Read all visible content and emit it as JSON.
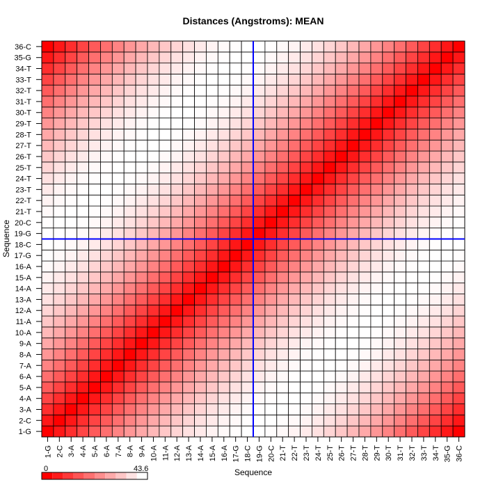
{
  "chart_data": {
    "type": "heatmap",
    "title": "Distances (Angstroms):  MEAN",
    "xlabel": "Sequence",
    "ylabel": "Sequence",
    "labels": [
      "1-G",
      "2-C",
      "3-A",
      "4-A",
      "5-A",
      "6-A",
      "7-A",
      "8-A",
      "9-A",
      "10-A",
      "11-A",
      "12-A",
      "13-A",
      "14-A",
      "15-A",
      "16-A",
      "17-G",
      "18-C",
      "19-G",
      "20-C",
      "21-T",
      "22-T",
      "23-T",
      "24-T",
      "25-T",
      "26-T",
      "27-T",
      "28-T",
      "29-T",
      "30-T",
      "31-T",
      "32-T",
      "33-T",
      "34-T",
      "35-G",
      "36-C"
    ],
    "values_rule": "approx. symmetric distance matrix; value(i,j) = 43.6 * sin(pi*|i-j|/35), i.e. 0 on the main diagonal, 43.6 at |i-j| about 17-18, falling back toward 0 at the opposite corners",
    "colorbar": {
      "min_label": "0",
      "max_label": "43.6",
      "min": 0,
      "max": 43.6,
      "low_color": "#ff0000",
      "high_color": "#ffffff"
    },
    "crosshair": {
      "x_between": [
        "18-C",
        "19-G"
      ],
      "y_between": [
        "18-C",
        "19-G"
      ],
      "color": "#0000ff"
    },
    "grid": true
  }
}
